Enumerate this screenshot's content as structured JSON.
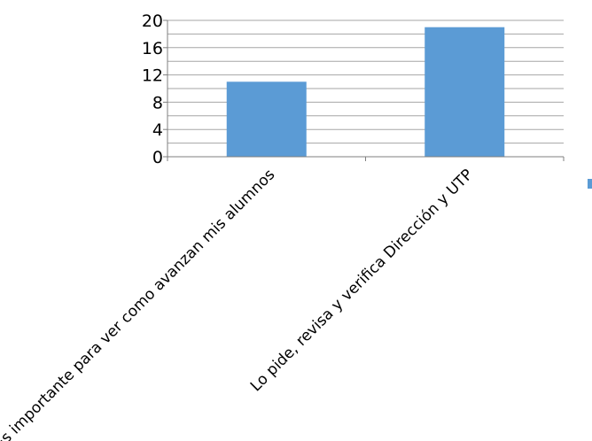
{
  "chart_data": {
    "type": "bar",
    "categories": [
      "Es importante para ver como avanzan mis alumnos",
      "Lo pide, revisa y verifica Dirección y UTP"
    ],
    "series": [
      {
        "values": [
          11,
          19
        ]
      }
    ],
    "ylim": [
      0,
      20
    ],
    "yticks": [
      0,
      4,
      8,
      12,
      16,
      20
    ],
    "minor_gridlines_step": 2,
    "grid": true,
    "legend": "right",
    "colors": {
      "bar": "#5b9bd5",
      "grid": "#a6a6a6",
      "axis": "#7f7f7f",
      "text": "#000000"
    }
  }
}
